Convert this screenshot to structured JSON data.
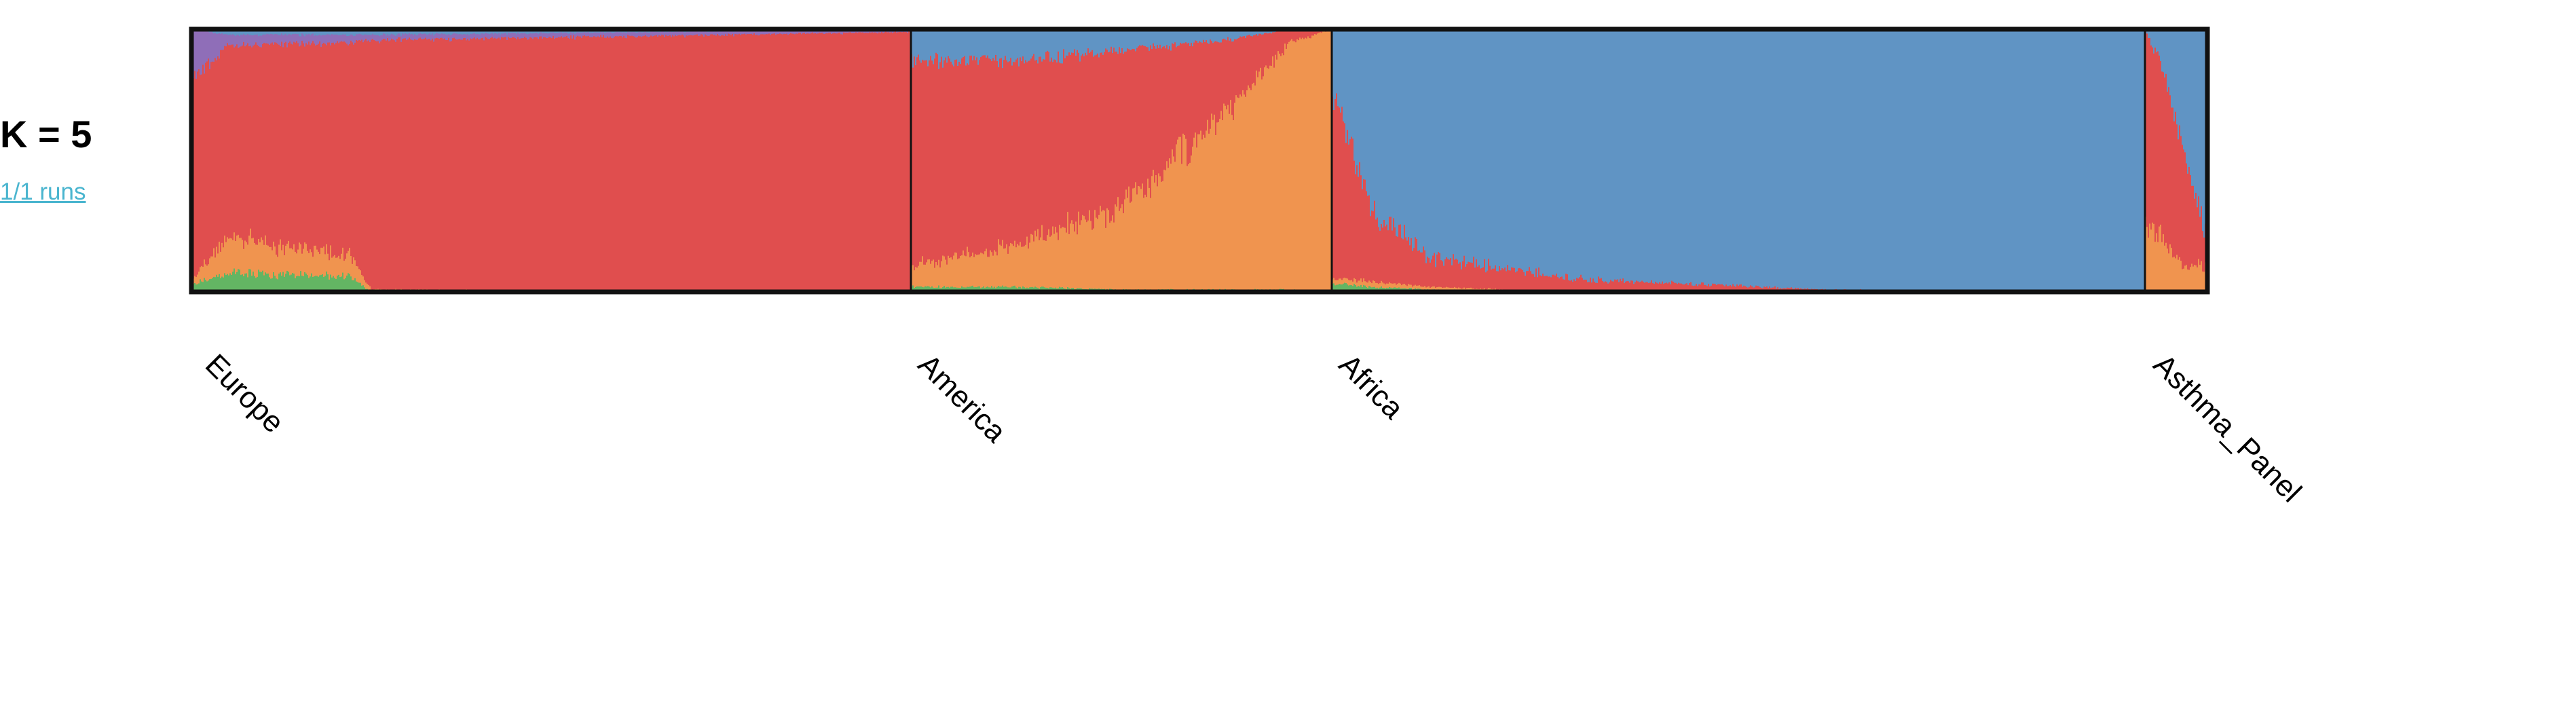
{
  "k_label": "K = 5",
  "runs_link": "1/1 runs",
  "colors": {
    "blue": "#6094c4",
    "red": "#e04e4e",
    "orange": "#f0944f",
    "green": "#63b563",
    "purple": "#8f6eb8",
    "frame": "#111111"
  },
  "chart_data": {
    "type": "bar",
    "stacked": true,
    "normalized": true,
    "ylim": [
      0,
      1
    ],
    "component_order_bottom_to_top": [
      "green",
      "orange",
      "red",
      "purple",
      "blue"
    ],
    "groups": [
      {
        "label": "Europe",
        "samples": 1800,
        "profile": [
          {
            "at": 0.0,
            "blue": 0.0,
            "purple": 0.2,
            "red": 0.75,
            "orange": 0.02,
            "green": 0.03
          },
          {
            "at": 0.05,
            "blue": 0.02,
            "purple": 0.04,
            "red": 0.74,
            "orange": 0.13,
            "green": 0.07
          },
          {
            "at": 0.22,
            "blue": 0.02,
            "purple": 0.03,
            "red": 0.81,
            "orange": 0.08,
            "green": 0.06
          },
          {
            "at": 0.25,
            "blue": 0.02,
            "purple": 0.02,
            "red": 0.95,
            "orange": 0.01,
            "green": 0.0
          },
          {
            "at": 1.0,
            "blue": 0.0,
            "purple": 0.01,
            "red": 0.99,
            "orange": 0.0,
            "green": 0.0
          }
        ]
      },
      {
        "label": "America",
        "samples": 1050,
        "profile": [
          {
            "at": 0.0,
            "blue": 0.12,
            "purple": 0.0,
            "red": 0.78,
            "orange": 0.08,
            "green": 0.02
          },
          {
            "at": 0.25,
            "blue": 0.12,
            "purple": 0.0,
            "red": 0.7,
            "orange": 0.16,
            "green": 0.02
          },
          {
            "at": 0.5,
            "blue": 0.08,
            "purple": 0.0,
            "red": 0.6,
            "orange": 0.31,
            "green": 0.01
          },
          {
            "at": 0.75,
            "blue": 0.04,
            "purple": 0.0,
            "red": 0.28,
            "orange": 0.67,
            "green": 0.01
          },
          {
            "at": 0.9,
            "blue": 0.0,
            "purple": 0.0,
            "red": 0.05,
            "orange": 0.94,
            "green": 0.01
          },
          {
            "at": 1.0,
            "blue": 0.0,
            "purple": 0.0,
            "red": 0.0,
            "orange": 1.0,
            "green": 0.0
          }
        ]
      },
      {
        "label": "Africa",
        "samples": 2020,
        "profile": [
          {
            "at": 0.0,
            "blue": 0.25,
            "purple": 0.0,
            "red": 0.7,
            "orange": 0.02,
            "green": 0.03
          },
          {
            "at": 0.02,
            "blue": 0.4,
            "purple": 0.0,
            "red": 0.55,
            "orange": 0.02,
            "green": 0.03
          },
          {
            "at": 0.05,
            "blue": 0.7,
            "purple": 0.0,
            "red": 0.26,
            "orange": 0.02,
            "green": 0.02
          },
          {
            "at": 0.12,
            "blue": 0.87,
            "purple": 0.0,
            "red": 0.11,
            "orange": 0.01,
            "green": 0.01
          },
          {
            "at": 0.3,
            "blue": 0.95,
            "purple": 0.0,
            "red": 0.05,
            "orange": 0.0,
            "green": 0.0
          },
          {
            "at": 0.6,
            "blue": 0.99,
            "purple": 0.0,
            "red": 0.01,
            "orange": 0.0,
            "green": 0.0
          },
          {
            "at": 1.0,
            "blue": 1.0,
            "purple": 0.0,
            "red": 0.0,
            "orange": 0.0,
            "green": 0.0
          }
        ]
      },
      {
        "label": "Asthma_Panel",
        "samples": 150,
        "profile": [
          {
            "at": 0.0,
            "blue": 0.0,
            "purple": 0.0,
            "red": 0.75,
            "orange": 0.25,
            "green": 0.0
          },
          {
            "at": 0.3,
            "blue": 0.15,
            "purple": 0.0,
            "red": 0.65,
            "orange": 0.2,
            "green": 0.0
          },
          {
            "at": 0.6,
            "blue": 0.45,
            "purple": 0.0,
            "red": 0.45,
            "orange": 0.1,
            "green": 0.0
          },
          {
            "at": 1.0,
            "blue": 0.8,
            "purple": 0.0,
            "red": 0.1,
            "orange": 0.1,
            "green": 0.0
          }
        ]
      }
    ]
  }
}
